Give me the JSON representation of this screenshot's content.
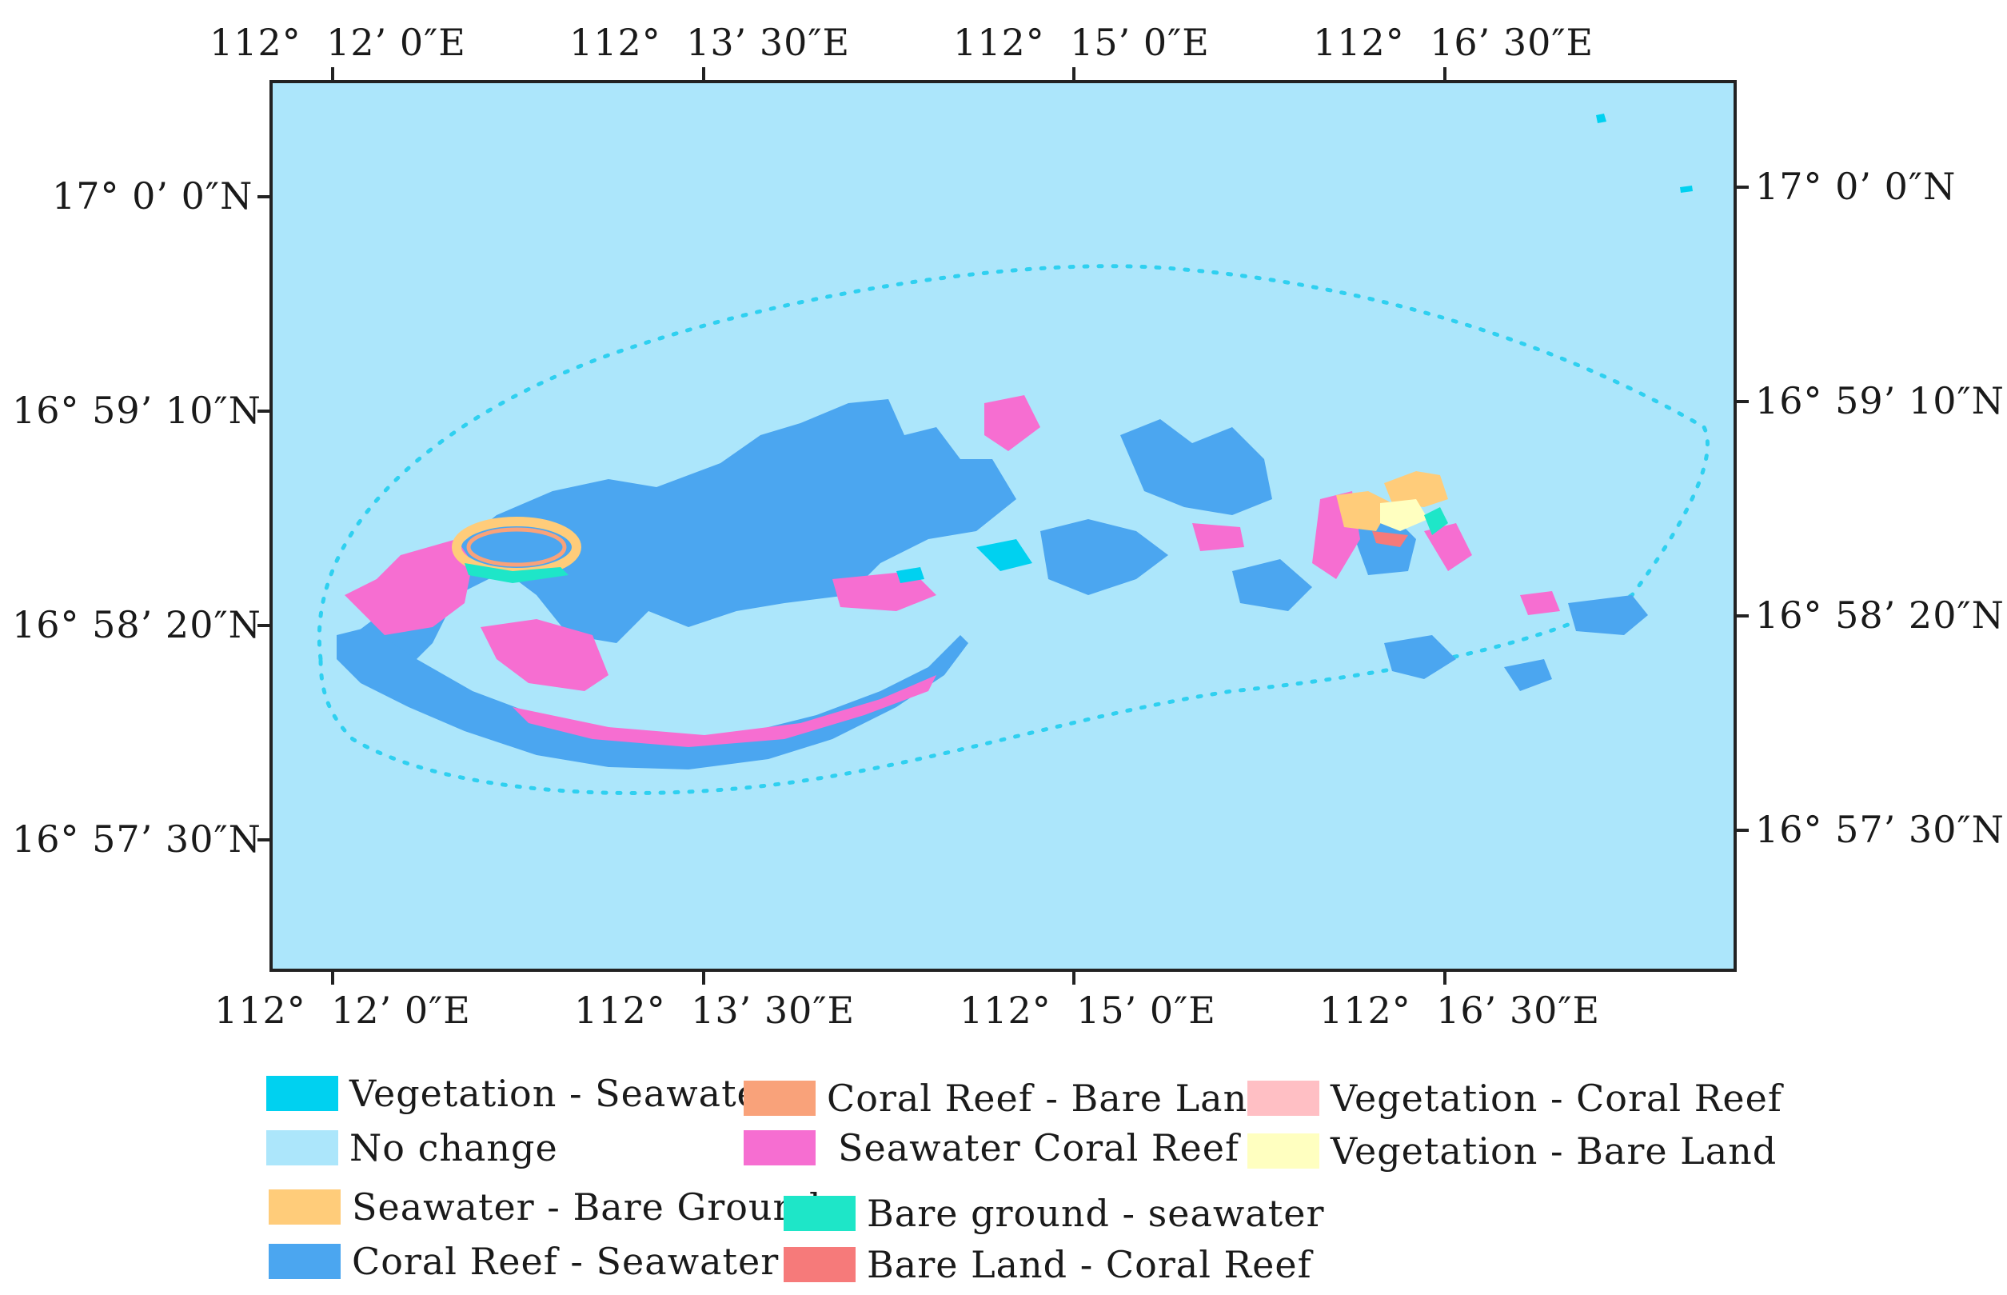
{
  "map": {
    "top_lon_labels": [
      {
        "deg": "112°",
        "min": "12’ 0″E"
      },
      {
        "deg": "112°",
        "min": "13’ 30″E"
      },
      {
        "deg": "112°",
        "min": "15’ 0″E"
      },
      {
        "deg": "112°",
        "min": "16’ 30″E"
      }
    ],
    "bottom_lon_labels": [
      {
        "deg": "112°",
        "min": "12’ 0″E"
      },
      {
        "deg": "112°",
        "min": "13’ 30″E"
      },
      {
        "deg": "112°",
        "min": "15’ 0″E"
      },
      {
        "deg": "112°",
        "min": "16’ 30″E"
      }
    ],
    "left_lat_labels": [
      "17°  0’ 0″N",
      "16°  59’ 10″N",
      "16°  58’ 20″N",
      "16°  57’ 30″N"
    ],
    "right_lat_labels": [
      "17°  0’ 0″N",
      "16°  59’ 10″N",
      "16°  58’ 20″N",
      "16°  57’ 30″N"
    ],
    "background_color": "#ace6fb"
  },
  "legend": [
    {
      "label": "Vegetation - Seawater",
      "color": "#00d1f0"
    },
    {
      "label": "No change",
      "color": "#ace6fb"
    },
    {
      "label": "Seawater - Bare Ground",
      "color": "#ffcc7a"
    },
    {
      "label": "Coral Reef - Seawater",
      "color": "#4ba6f0"
    },
    {
      "label": "Coral Reef - Bare Land",
      "color": "#f9a27a"
    },
    {
      "label": "Seawater Coral Reef",
      "color": "#f66ed1"
    },
    {
      "label": "Bare ground - seawater",
      "color": "#1ee6c8"
    },
    {
      "label": "Bare Land - Coral Reef",
      "color": "#f67a7a"
    },
    {
      "label": "Vegetation - Coral Reef",
      "color": "#ffbfc4"
    },
    {
      "label": "Vegetation - Bare Land",
      "color": "#ffffc0"
    }
  ]
}
